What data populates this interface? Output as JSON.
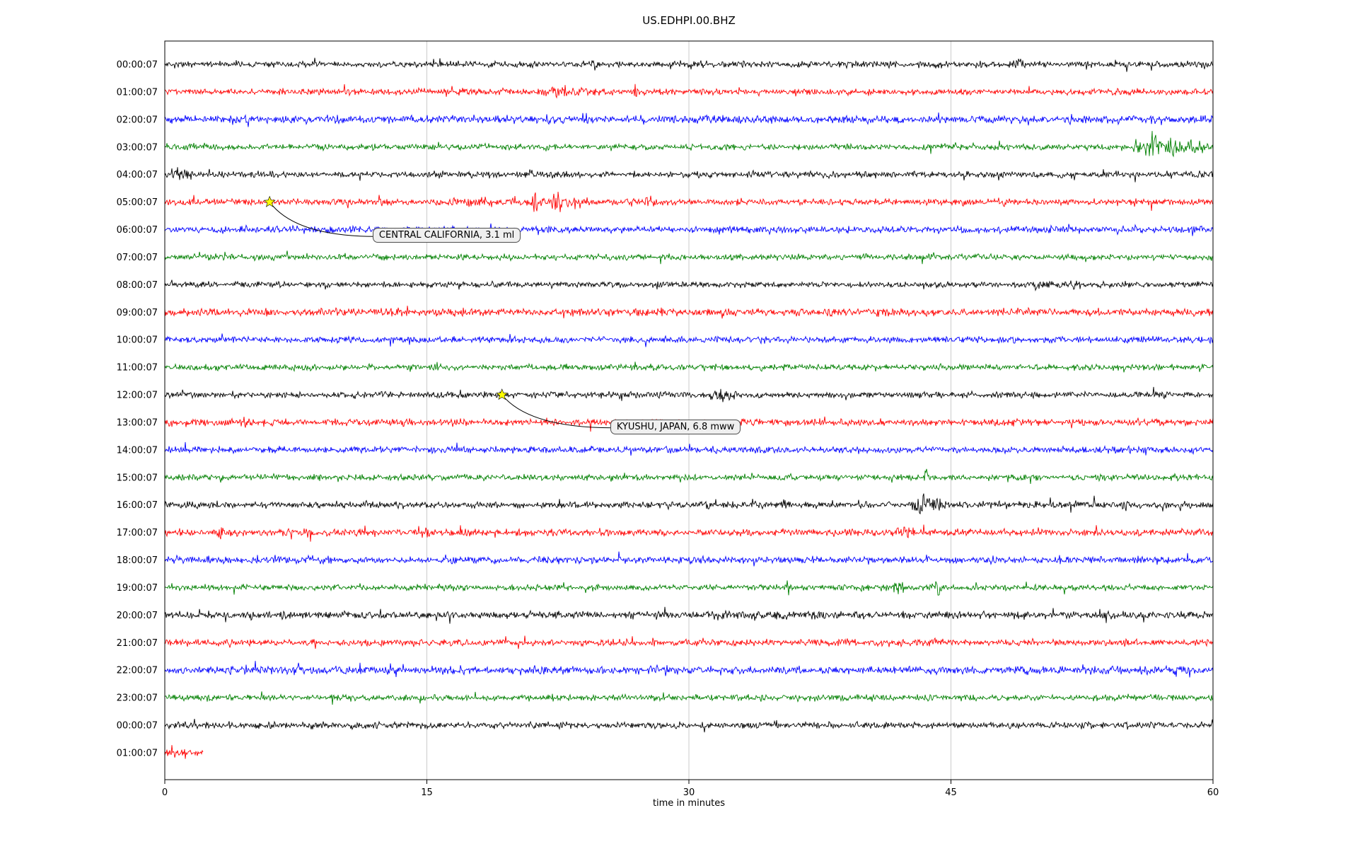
{
  "chart_data": {
    "type": "line",
    "title": "US.EDHPI.00.BHZ",
    "xlabel": "time in minutes",
    "x_range_minutes": [
      0,
      60
    ],
    "xticks": [
      0,
      15,
      30,
      45,
      60
    ],
    "grid": "vertical-only",
    "row_color_cycle": [
      "#000000",
      "#ff0000",
      "#0000ff",
      "#008000"
    ],
    "marker_color": "#ffff00",
    "rows": [
      {
        "label": "00:00:07",
        "color": "#000000",
        "amp": 2.4,
        "end": 60,
        "seed": 5,
        "events": [
          [
            24.6,
            6,
            0.3
          ],
          [
            39,
            8,
            0.15
          ],
          [
            48.8,
            9,
            0.35
          ],
          [
            44.3,
            4,
            0.2
          ],
          [
            24.0,
            5,
            0.2
          ]
        ]
      },
      {
        "label": "01:00:07",
        "color": "#ff0000",
        "amp": 2.4,
        "end": 60,
        "seed": 12,
        "events": [
          [
            22.8,
            8,
            1.0
          ],
          [
            24.3,
            5,
            0.4
          ],
          [
            27,
            4,
            0.3
          ]
        ]
      },
      {
        "label": "02:00:07",
        "color": "#0000ff",
        "amp": 3.0,
        "end": 60,
        "seed": 23,
        "events": [
          [
            56.8,
            4,
            0.4
          ]
        ]
      },
      {
        "label": "03:00:07",
        "color": "#008000",
        "amp": 2.4,
        "end": 60,
        "seed": 34,
        "events": [
          [
            55.6,
            10,
            0.25
          ],
          [
            56.6,
            20,
            0.5
          ],
          [
            57.6,
            13,
            0.5
          ],
          [
            58.6,
            11,
            0.8
          ],
          [
            59.6,
            9,
            0.3
          ]
        ]
      },
      {
        "label": "04:00:07",
        "color": "#000000",
        "amp": 2.4,
        "end": 60,
        "seed": 45,
        "events": [
          [
            0.6,
            10,
            0.25
          ],
          [
            1.3,
            7,
            0.3
          ],
          [
            21,
            4,
            0.2
          ]
        ]
      },
      {
        "label": "05:00:07",
        "color": "#ff0000",
        "amp": 2.4,
        "end": 60,
        "seed": 56,
        "events": [
          [
            17.5,
            5,
            1.5
          ],
          [
            21.2,
            15,
            0.3
          ],
          [
            22.4,
            17,
            0.35
          ],
          [
            23.2,
            7,
            1.2
          ],
          [
            26.8,
            4,
            0.8
          ],
          [
            27.7,
            7,
            0.3
          ],
          [
            48,
            5,
            0.25
          ]
        ]
      },
      {
        "label": "06:00:07",
        "color": "#0000ff",
        "amp": 2.6,
        "end": 60,
        "seed": 67,
        "events": [
          [
            12.4,
            9,
            0.12
          ],
          [
            13.1,
            4,
            0.1
          ],
          [
            52,
            4,
            0.2
          ]
        ]
      },
      {
        "label": "07:00:07",
        "color": "#008000",
        "amp": 2.3,
        "end": 60,
        "seed": 78,
        "events": [
          [
            44,
            3,
            0.3
          ]
        ]
      },
      {
        "label": "08:00:07",
        "color": "#000000",
        "amp": 2.2,
        "end": 60,
        "seed": 89,
        "events": [
          [
            50,
            4,
            0.8
          ],
          [
            52,
            4,
            0.6
          ],
          [
            55,
            3.5,
            0.4
          ]
        ]
      },
      {
        "label": "09:00:07",
        "color": "#ff0000",
        "amp": 2.8,
        "end": 60,
        "seed": 90,
        "events": [
          [
            2,
            3.5,
            0.3
          ],
          [
            8,
            3.5,
            0.3
          ]
        ]
      },
      {
        "label": "10:00:07",
        "color": "#0000ff",
        "amp": 2.5,
        "end": 60,
        "seed": 101,
        "events": [
          [
            10.7,
            8,
            0.12
          ],
          [
            13,
            6,
            0.18
          ],
          [
            14,
            5.5,
            0.12
          ],
          [
            4,
            4,
            0.1
          ]
        ]
      },
      {
        "label": "11:00:07",
        "color": "#008000",
        "amp": 2.3,
        "end": 60,
        "seed": 112,
        "events": [
          [
            26.9,
            7,
            0.25
          ],
          [
            28,
            5.5,
            0.25
          ],
          [
            6.5,
            4,
            0.2
          ],
          [
            23.5,
            3.5,
            0.2
          ]
        ]
      },
      {
        "label": "12:00:07",
        "color": "#000000",
        "amp": 2.4,
        "end": 60,
        "seed": 123,
        "events": [
          [
            31.9,
            7,
            0.7
          ],
          [
            32.6,
            6,
            0.3
          ]
        ]
      },
      {
        "label": "13:00:07",
        "color": "#ff0000",
        "amp": 2.7,
        "end": 60,
        "seed": 134,
        "events": []
      },
      {
        "label": "14:00:07",
        "color": "#0000ff",
        "amp": 2.5,
        "end": 60,
        "seed": 145,
        "events": []
      },
      {
        "label": "15:00:07",
        "color": "#008000",
        "amp": 2.3,
        "end": 60,
        "seed": 156,
        "events": [
          [
            43.6,
            13,
            0.12
          ]
        ]
      },
      {
        "label": "16:00:07",
        "color": "#000000",
        "amp": 2.5,
        "end": 60,
        "seed": 167,
        "events": [
          [
            43.4,
            17,
            0.45
          ],
          [
            44.1,
            11,
            0.35
          ],
          [
            47.6,
            6,
            0.3
          ],
          [
            55,
            5,
            0.3
          ],
          [
            49.8,
            4,
            0.2
          ]
        ]
      },
      {
        "label": "17:00:07",
        "color": "#ff0000",
        "amp": 2.6,
        "end": 60,
        "seed": 178,
        "events": [
          [
            3.2,
            6,
            0.3
          ],
          [
            8.2,
            5.5,
            0.25
          ],
          [
            15,
            6,
            0.2
          ],
          [
            39,
            5,
            0.2
          ],
          [
            42.4,
            8,
            0.5
          ],
          [
            47,
            4,
            0.3
          ],
          [
            12,
            4,
            0.2
          ]
        ]
      },
      {
        "label": "18:00:07",
        "color": "#0000ff",
        "amp": 2.6,
        "end": 60,
        "seed": 189,
        "events": [
          [
            5,
            2.5,
            5
          ],
          [
            16.5,
            5.5,
            0.12
          ],
          [
            47,
            3.5,
            0.5
          ],
          [
            57,
            4,
            0.4
          ]
        ]
      },
      {
        "label": "19:00:07",
        "color": "#008000",
        "amp": 2.3,
        "end": 60,
        "seed": 190,
        "events": [
          [
            41.9,
            7,
            0.5
          ],
          [
            44.2,
            8,
            0.35
          ],
          [
            23,
            3.5,
            0.2
          ]
        ]
      },
      {
        "label": "20:00:07",
        "color": "#000000",
        "amp": 2.8,
        "end": 60,
        "seed": 201,
        "events": [
          [
            13,
            3.5,
            0.3
          ],
          [
            23.5,
            3.5,
            0.3
          ],
          [
            34,
            3,
            4
          ]
        ]
      },
      {
        "label": "21:00:07",
        "color": "#ff0000",
        "amp": 2.5,
        "end": 60,
        "seed": 212,
        "events": [
          [
            3.5,
            5.5,
            0.3
          ],
          [
            8.6,
            5.5,
            0.25
          ],
          [
            17,
            5,
            0.2
          ],
          [
            43,
            4,
            0.25
          ],
          [
            51.5,
            4,
            0.25
          ],
          [
            28,
            4,
            0.2
          ]
        ]
      },
      {
        "label": "22:00:07",
        "color": "#0000ff",
        "amp": 3.0,
        "end": 60,
        "seed": 223,
        "events": [
          [
            11.2,
            6,
            0.2
          ],
          [
            28,
            4,
            0.2
          ],
          [
            58,
            4.5,
            0.3
          ]
        ]
      },
      {
        "label": "23:00:07",
        "color": "#008000",
        "amp": 2.4,
        "end": 60,
        "seed": 234,
        "events": []
      },
      {
        "label": "00:00:07",
        "color": "#000000",
        "amp": 2.5,
        "end": 60,
        "seed": 245,
        "events": [
          [
            52.8,
            4,
            0.3
          ],
          [
            9,
            3.5,
            0.3
          ]
        ]
      },
      {
        "label": "01:00:07",
        "color": "#ff0000",
        "amp": 3.0,
        "end": 2.2,
        "seed": 256,
        "events": [
          [
            1,
            4,
            0.5
          ]
        ]
      }
    ],
    "annotations": [
      {
        "text": "CENTRAL CALIFORNIA, 3.1 ml",
        "row": 5,
        "minute": 6.0,
        "label_minute": 11.9,
        "label_row": 6.25
      },
      {
        "text": "KYUSHU, JAPAN, 6.8 mww",
        "row": 12,
        "minute": 19.3,
        "label_minute": 25.5,
        "label_row": 13.2
      }
    ]
  }
}
